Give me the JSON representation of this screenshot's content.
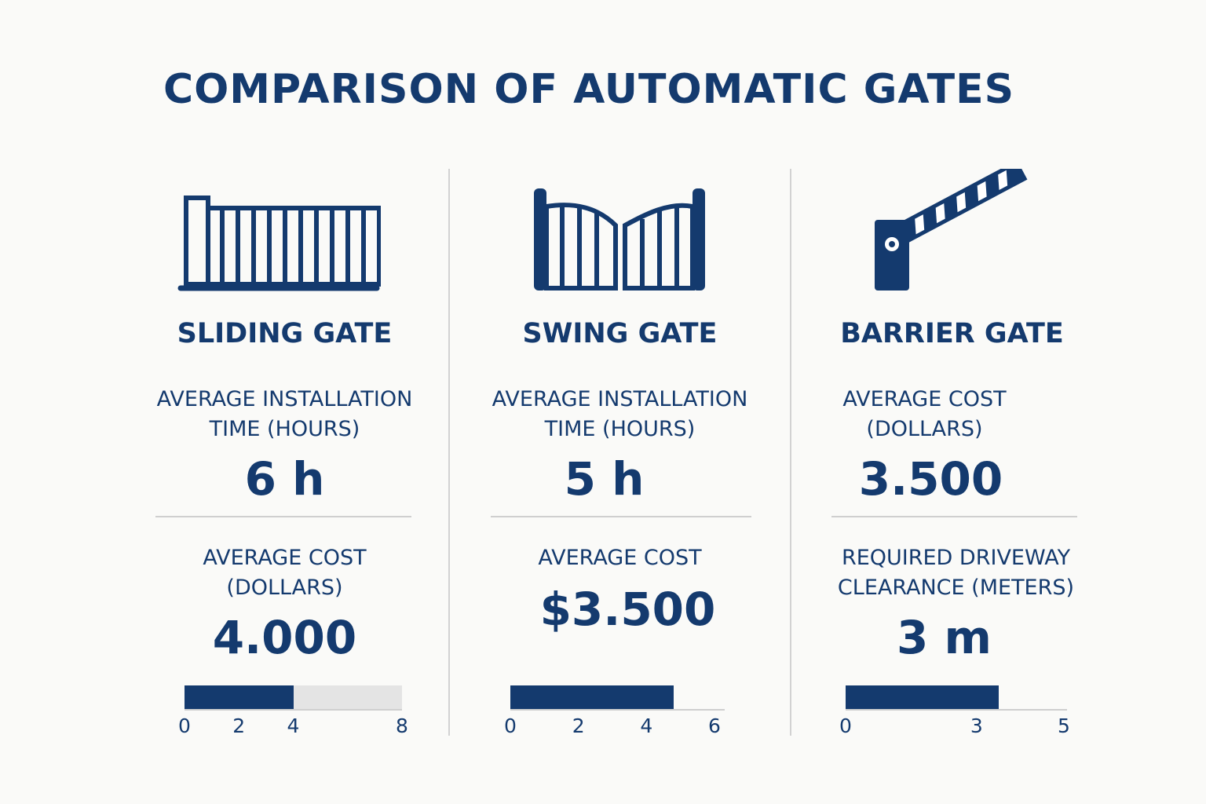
{
  "title": "COMPARISON OF AUTOMATIC GATES",
  "colors": {
    "primary": "#143a6e",
    "background": "#fafaf8",
    "bar_rest": "#e4e4e4",
    "divider": "#d2d2d2"
  },
  "columns": [
    {
      "name": "SLIDING GATE",
      "icon": "sliding-gate-icon",
      "metric1": {
        "label_line1": "AVERAGE INSTALLATION",
        "label_line2": "TIME (HOURS)",
        "value": "6 h"
      },
      "metric2": {
        "label_line1": "AVERAGE COST",
        "label_line2": "(DOLLARS)",
        "value": "4.000"
      }
    },
    {
      "name": "SWING GATE",
      "icon": "swing-gate-icon",
      "metric1": {
        "label_line1": "AVERAGE INSTALLATION",
        "label_line2": "TIME (HOURS)",
        "value": "5 h"
      },
      "metric2": {
        "label_line1": "AVERAGE COST",
        "label_line2": "",
        "value": "$3.500"
      }
    },
    {
      "name": "BARRIER GATE",
      "icon": "barrier-gate-icon",
      "metric1": {
        "label_line1": "AVERAGE COST",
        "label_line2": "(DOLLARS)",
        "value": "3.500"
      },
      "metric2": {
        "label_line1": "REQUIRED DRIVEWAY",
        "label_line2": "CLEARANCE (METERS)",
        "value": "3 m"
      }
    }
  ],
  "chart_data": [
    {
      "type": "bar",
      "orientation": "horizontal",
      "categories": [
        "SLIDING GATE"
      ],
      "values": [
        4
      ],
      "xlim": [
        0,
        8
      ],
      "xticks": [
        "0",
        "2",
        "4",
        "8"
      ],
      "xtick_values": [
        0,
        2,
        4,
        8
      ]
    },
    {
      "type": "bar",
      "orientation": "horizontal",
      "categories": [
        "SWING GATE"
      ],
      "values": [
        4.8
      ],
      "xlim": [
        0,
        6
      ],
      "xticks": [
        "0",
        "2",
        "4",
        "6"
      ],
      "xtick_values": [
        0,
        2,
        4,
        6
      ]
    },
    {
      "type": "bar",
      "orientation": "horizontal",
      "categories": [
        "BARRIER GATE"
      ],
      "values": [
        3.5
      ],
      "xlim": [
        0,
        5
      ],
      "xticks": [
        "0",
        "3",
        "5"
      ],
      "xtick_values": [
        0,
        3,
        5
      ]
    }
  ]
}
